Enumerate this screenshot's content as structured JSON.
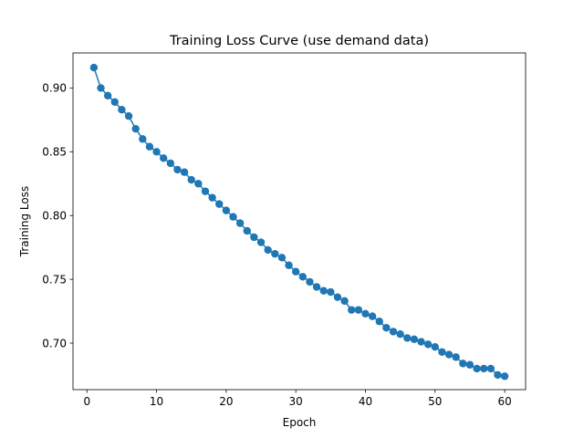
{
  "chart_data": {
    "type": "line",
    "title": "Training Loss Curve (use demand data)",
    "xlabel": "Epoch",
    "ylabel": "Training Loss",
    "xlim": [
      -2,
      63
    ],
    "ylim": [
      0.6635,
      0.9275
    ],
    "xticks": [
      0,
      10,
      20,
      30,
      40,
      50,
      60
    ],
    "yticks": [
      0.7,
      0.75,
      0.8,
      0.85,
      0.9
    ],
    "ytick_labels": [
      "0.70",
      "0.75",
      "0.80",
      "0.85",
      "0.90"
    ],
    "grid": false,
    "legend": "none",
    "marker": "circle",
    "series": [
      {
        "color": "#1f77b4",
        "x": [
          1,
          2,
          3,
          4,
          5,
          6,
          7,
          8,
          9,
          10,
          11,
          12,
          13,
          14,
          15,
          16,
          17,
          18,
          19,
          20,
          21,
          22,
          23,
          24,
          25,
          26,
          27,
          28,
          29,
          30,
          31,
          32,
          33,
          34,
          35,
          36,
          37,
          38,
          39,
          40,
          41,
          42,
          43,
          44,
          45,
          46,
          47,
          48,
          49,
          50,
          51,
          52,
          53,
          54,
          55,
          56,
          57,
          58,
          59,
          60
        ],
        "y": [
          0.916,
          0.9,
          0.894,
          0.889,
          0.883,
          0.878,
          0.868,
          0.86,
          0.854,
          0.85,
          0.845,
          0.841,
          0.836,
          0.834,
          0.828,
          0.825,
          0.819,
          0.814,
          0.809,
          0.804,
          0.799,
          0.794,
          0.788,
          0.783,
          0.779,
          0.773,
          0.77,
          0.767,
          0.761,
          0.756,
          0.752,
          0.748,
          0.744,
          0.741,
          0.74,
          0.736,
          0.733,
          0.726,
          0.726,
          0.723,
          0.721,
          0.717,
          0.712,
          0.709,
          0.707,
          0.704,
          0.703,
          0.701,
          0.699,
          0.697,
          0.693,
          0.691,
          0.689,
          0.684,
          0.683,
          0.68,
          0.68,
          0.68,
          0.675,
          0.674
        ]
      }
    ]
  }
}
